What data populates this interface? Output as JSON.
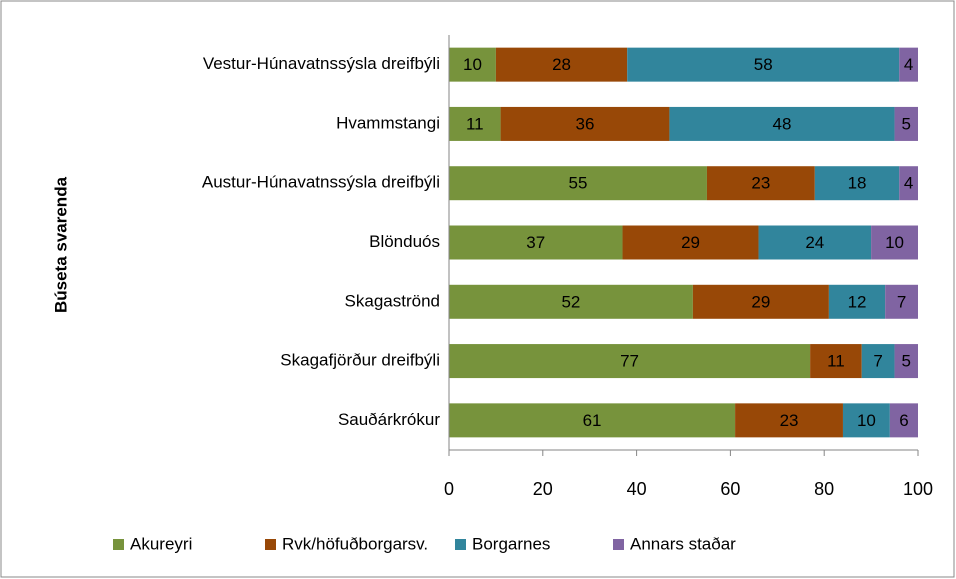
{
  "chart_data": {
    "type": "stacked_barh",
    "y_label": "Búseta svarenda",
    "categories": [
      "Vestur-Húnavatnssýsla dreifbýli",
      "Hvammstangi",
      "Austur-Húnavatnssýsla dreifbýli",
      "Blönduós",
      "Skagaströnd",
      "Skagafjörður dreifbýli",
      "Sauðárkrókur"
    ],
    "series": [
      {
        "name": "Akureyri",
        "color": "#77933c",
        "values": [
          10,
          11,
          55,
          37,
          52,
          77,
          61
        ]
      },
      {
        "name": "Rvk/höfuðborgarsv.",
        "color": "#984807",
        "values": [
          28,
          36,
          23,
          29,
          29,
          11,
          23
        ]
      },
      {
        "name": "Borgarnes",
        "color": "#31859c",
        "values": [
          58,
          48,
          18,
          24,
          12,
          7,
          10
        ]
      },
      {
        "name": "Annars staðar",
        "color": "#8064a2",
        "values": [
          4,
          5,
          4,
          10,
          7,
          5,
          6
        ]
      }
    ],
    "xlim": [
      0,
      100
    ],
    "xticks": [
      0,
      20,
      40,
      60,
      80,
      100
    ],
    "legend": "bottom"
  }
}
